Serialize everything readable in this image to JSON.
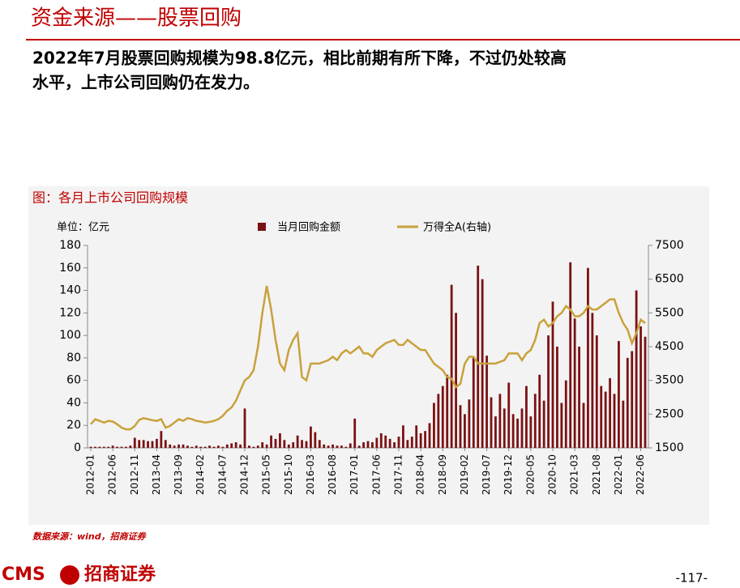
{
  "header": {
    "title": "资金来源——股票回购",
    "subtitle_lines": [
      "2022年7月股票回购规模为98.8亿元，相比前期有所下降，不过仍处较高",
      "水平，上市公司回购仍在发力。"
    ]
  },
  "chart_data": {
    "type": "bar-line",
    "title": "图：各月上市公司回购规模",
    "unit_label": "单位：亿元",
    "categories": [
      "2012-01",
      null,
      null,
      null,
      null,
      "2012-06",
      null,
      null,
      null,
      null,
      "2012-11",
      null,
      null,
      null,
      null,
      "2013-04",
      null,
      null,
      null,
      null,
      "2013-09",
      null,
      null,
      null,
      null,
      "2014-02",
      null,
      null,
      null,
      null,
      "2014-07",
      null,
      null,
      null,
      null,
      "2014-12",
      null,
      null,
      null,
      null,
      "2015-05",
      null,
      null,
      null,
      null,
      "2015-10",
      null,
      null,
      null,
      null,
      "2016-03",
      null,
      null,
      null,
      null,
      "2016-08",
      null,
      null,
      null,
      null,
      "2017-01",
      null,
      null,
      null,
      null,
      "2017-06",
      null,
      null,
      null,
      null,
      "2017-11",
      null,
      null,
      null,
      null,
      "2018-04",
      null,
      null,
      null,
      null,
      "2018-09",
      null,
      null,
      null,
      null,
      "2019-02",
      null,
      null,
      null,
      null,
      "2019-07",
      null,
      null,
      null,
      null,
      "2019-12",
      null,
      null,
      null,
      null,
      "2020-05",
      null,
      null,
      null,
      null,
      "2020-10",
      null,
      null,
      null,
      null,
      "2021-03",
      null,
      null,
      null,
      null,
      "2021-08",
      null,
      null,
      null,
      null,
      "2022-01",
      null,
      null,
      null,
      null,
      "2022-06",
      null
    ],
    "series": [
      {
        "name": "当月回购金额",
        "color": "#7b1113",
        "kind": "bar",
        "values": [
          1,
          1,
          1,
          1,
          1,
          2,
          1,
          1,
          1,
          2,
          9,
          7,
          7,
          6,
          6,
          8,
          15,
          7,
          3,
          2,
          3,
          3,
          2,
          1,
          2,
          1,
          1,
          2,
          1,
          2,
          1,
          3,
          4,
          5,
          3,
          35,
          2,
          1,
          2,
          5,
          3,
          11,
          8,
          13,
          7,
          3,
          5,
          11,
          7,
          6,
          19,
          14,
          7,
          3,
          2,
          3,
          2,
          2,
          1,
          4,
          26,
          2,
          5,
          6,
          5,
          9,
          13,
          11,
          8,
          5,
          10,
          20,
          7,
          10,
          20,
          13,
          15,
          22,
          40,
          48,
          55,
          65,
          145,
          120,
          38,
          30,
          43,
          80,
          162,
          150,
          82,
          45,
          28,
          48,
          35,
          58,
          30,
          26,
          35,
          55,
          28,
          48,
          65,
          42,
          100,
          130,
          90,
          40,
          60,
          165,
          115,
          90,
          40,
          160,
          120,
          100,
          55,
          50,
          62,
          48,
          95,
          42,
          80,
          86,
          140,
          108,
          98.8
        ]
      },
      {
        "name": "万得全A(右轴)",
        "color": "#c9a13b",
        "kind": "line",
        "axis": "y2",
        "values": [
          2200,
          2350,
          2300,
          2250,
          2300,
          2280,
          2200,
          2100,
          2050,
          2050,
          2150,
          2330,
          2380,
          2350,
          2320,
          2300,
          2350,
          2100,
          2150,
          2250,
          2350,
          2300,
          2380,
          2350,
          2300,
          2280,
          2250,
          2270,
          2300,
          2350,
          2450,
          2600,
          2700,
          2900,
          3200,
          3500,
          3600,
          3800,
          4500,
          5500,
          6300,
          5600,
          4700,
          4000,
          3800,
          4400,
          4700,
          4900,
          3600,
          3500,
          4000,
          4000,
          4000,
          4050,
          4100,
          4200,
          4100,
          4300,
          4400,
          4300,
          4400,
          4500,
          4300,
          4300,
          4200,
          4400,
          4500,
          4600,
          4650,
          4700,
          4550,
          4550,
          4700,
          4600,
          4500,
          4400,
          4400,
          4200,
          4000,
          3900,
          3800,
          3600,
          3550,
          3300,
          3400,
          4000,
          4200,
          4200,
          4000,
          4000,
          4000,
          4000,
          4000,
          4050,
          4100,
          4300,
          4300,
          4300,
          4100,
          4300,
          4400,
          4700,
          5200,
          5300,
          5100,
          5200,
          5400,
          5500,
          5700,
          5600,
          5400,
          5400,
          5500,
          5700,
          5600,
          5600,
          5700,
          5800,
          5900,
          5900,
          5500,
          5200,
          5000,
          4600,
          4900,
          5300,
          5200
        ]
      }
    ],
    "ylim": [
      0,
      180
    ],
    "yticks": [
      0,
      20,
      40,
      60,
      80,
      100,
      120,
      140,
      160,
      180
    ],
    "y2lim": [
      1500,
      7500
    ],
    "y2ticks": [
      1500,
      2500,
      3500,
      4500,
      5500,
      6500,
      7500
    ]
  },
  "footer": {
    "source": "数据来源：wind，招商证券",
    "logo_text": "CMS",
    "logo_cn": "招商证券",
    "page": "-117-"
  }
}
